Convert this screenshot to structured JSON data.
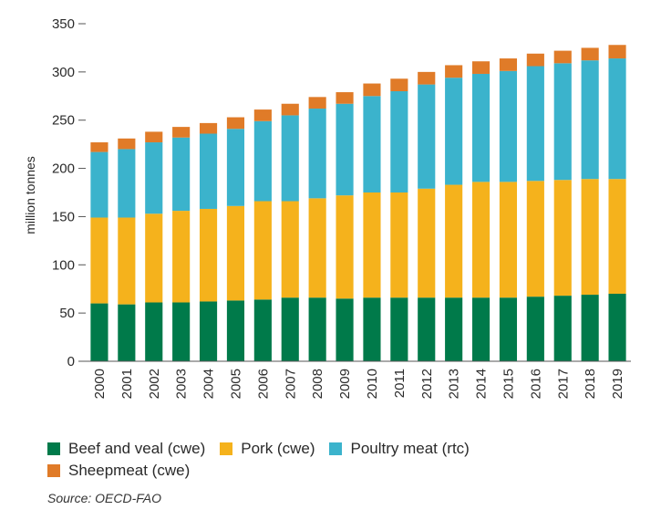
{
  "chart_data": {
    "type": "bar",
    "stacked": true,
    "categories": [
      "2000",
      "2001",
      "2002",
      "2003",
      "2004",
      "2005",
      "2006",
      "2007",
      "2008",
      "2009",
      "2010",
      "2011",
      "2012",
      "2013",
      "2014",
      "2015",
      "2016",
      "2017",
      "2018",
      "2019"
    ],
    "series": [
      {
        "name": "Beef and veal (cwe)",
        "color": "#007a4a",
        "values": [
          60,
          59,
          61,
          61,
          62,
          63,
          64,
          66,
          66,
          65,
          66,
          66,
          66,
          66,
          66,
          66,
          67,
          68,
          69,
          70
        ]
      },
      {
        "name": "Pork (cwe)",
        "color": "#f5b21c",
        "values": [
          89,
          90,
          92,
          95,
          96,
          98,
          102,
          100,
          103,
          107,
          109,
          109,
          113,
          117,
          120,
          120,
          120,
          120,
          120,
          119
        ]
      },
      {
        "name": "Poultry meat (rtc)",
        "color": "#3bb3cc",
        "values": [
          68,
          71,
          74,
          76,
          78,
          80,
          83,
          89,
          93,
          95,
          100,
          105,
          108,
          111,
          112,
          115,
          119,
          121,
          123,
          125
        ]
      },
      {
        "name": "Sheepmeat (cwe)",
        "color": "#e07b28",
        "values": [
          10,
          11,
          11,
          11,
          11,
          12,
          12,
          12,
          12,
          12,
          13,
          13,
          13,
          13,
          13,
          13,
          13,
          13,
          13,
          14
        ]
      }
    ],
    "ylabel": "million tonnes",
    "ylim": [
      0,
      350
    ],
    "yticks": [
      0,
      50,
      100,
      150,
      200,
      250,
      300,
      350
    ],
    "grid": false,
    "legend_position": "bottom",
    "source": "Source: OECD-FAO"
  }
}
